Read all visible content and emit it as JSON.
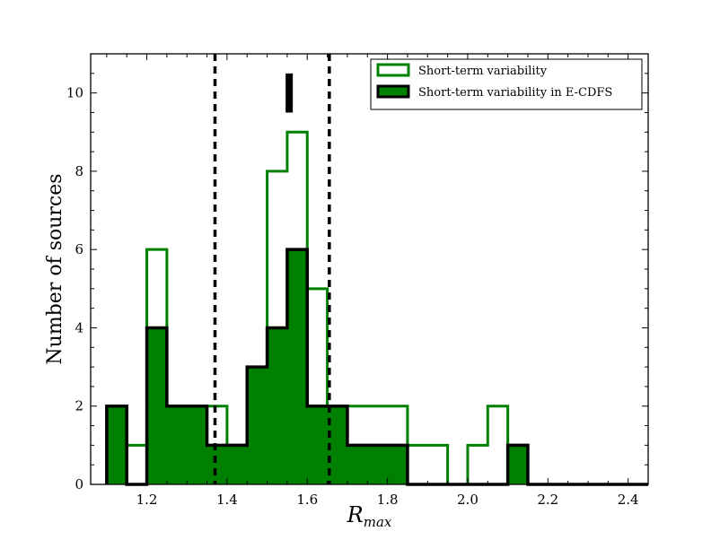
{
  "chart_data": {
    "type": "bar",
    "title": "",
    "xlabel": "R",
    "xlabel_sub": "max",
    "ylabel": "Number of sources",
    "xlim": [
      1.06,
      2.45
    ],
    "ylim": [
      0,
      11
    ],
    "xticks": [
      "1.2",
      "1.4",
      "1.6",
      "1.8",
      "2.0",
      "2.2",
      "2.4"
    ],
    "yticks": [
      "0",
      "2",
      "4",
      "6",
      "8",
      "10"
    ],
    "bin_edges": [
      1.1,
      1.15,
      1.2,
      1.25,
      1.3,
      1.35,
      1.4,
      1.45,
      1.5,
      1.55,
      1.6,
      1.65,
      1.7,
      1.75,
      1.8,
      1.85,
      1.9,
      1.95,
      2.0,
      2.05,
      2.1,
      2.15,
      2.2,
      2.25,
      2.3,
      2.35,
      2.4,
      2.45
    ],
    "series": [
      {
        "name": "Short-term variability",
        "style": "step-outline",
        "color": "#008000",
        "values": [
          2,
          1,
          6,
          2,
          2,
          2,
          1,
          3,
          8,
          9,
          5,
          2,
          2,
          2,
          2,
          1,
          1,
          0,
          1,
          2,
          1,
          0,
          0,
          0,
          0,
          0,
          0
        ]
      },
      {
        "name": "Short-term variability in E-CDFS",
        "style": "filled-step",
        "color": "#008000",
        "edge_color": "#000000",
        "values": [
          2,
          0,
          4,
          2,
          2,
          1,
          1,
          3,
          4,
          6,
          2,
          2,
          1,
          1,
          1,
          0,
          0,
          0,
          0,
          0,
          1,
          0,
          0,
          0,
          0,
          0,
          0
        ]
      }
    ],
    "vlines": [
      1.37,
      1.655
    ],
    "marker": {
      "x": 1.555,
      "y_range": [
        9.5,
        10.5
      ]
    },
    "legend_loc": "upper right",
    "grid": false
  }
}
